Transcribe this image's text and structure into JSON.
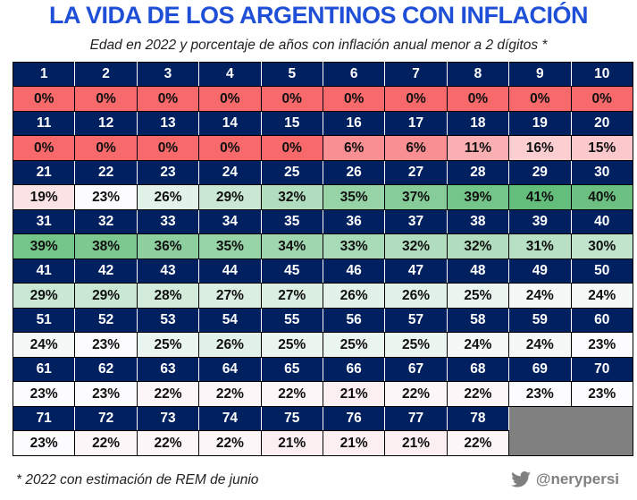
{
  "title": "LA VIDA DE LOS ARGENTINOS CON INFLACIÓN",
  "subtitle": "Edad en 2022 y porcentaje de años con inflación anual menor a 2 dígitos *",
  "footnote": "* 2022 con estimación de REM de junio",
  "credit": {
    "icon": "twitter-bird-icon",
    "handle": "@nerypersi"
  },
  "colors": {
    "header_bg": "#012060",
    "low": "#f8696b",
    "mid": "#fcfcff",
    "high": "#63be7b",
    "empty": "#808080"
  },
  "chart_data": {
    "type": "heatmap",
    "title": "LA VIDA DE LOS ARGENTINOS CON INFLACIÓN",
    "subtitle": "Edad en 2022 y porcentaje de años con inflación anual menor a 2 dígitos *",
    "xlabel": "Edad en 2022",
    "ylabel": "% de años con inflación anual menor a 2 dígitos",
    "columns_per_row": 10,
    "ages": [
      1,
      2,
      3,
      4,
      5,
      6,
      7,
      8,
      9,
      10,
      11,
      12,
      13,
      14,
      15,
      16,
      17,
      18,
      19,
      20,
      21,
      22,
      23,
      24,
      25,
      26,
      27,
      28,
      29,
      30,
      31,
      32,
      33,
      34,
      35,
      36,
      37,
      38,
      39,
      40,
      41,
      42,
      43,
      44,
      45,
      46,
      47,
      48,
      49,
      50,
      51,
      52,
      53,
      54,
      55,
      56,
      57,
      58,
      59,
      60,
      61,
      62,
      63,
      64,
      65,
      66,
      67,
      68,
      69,
      70,
      71,
      72,
      73,
      74,
      75,
      76,
      77,
      78
    ],
    "values": [
      0,
      0,
      0,
      0,
      0,
      0,
      0,
      0,
      0,
      0,
      0,
      0,
      0,
      0,
      0,
      6,
      6,
      11,
      16,
      15,
      19,
      23,
      26,
      29,
      32,
      35,
      37,
      39,
      41,
      40,
      39,
      38,
      36,
      35,
      34,
      33,
      32,
      32,
      31,
      30,
      29,
      29,
      28,
      27,
      27,
      26,
      26,
      25,
      24,
      24,
      24,
      23,
      25,
      26,
      25,
      25,
      25,
      24,
      24,
      23,
      23,
      23,
      22,
      22,
      22,
      21,
      22,
      22,
      23,
      23,
      23,
      22,
      22,
      22,
      21,
      21,
      21,
      22
    ],
    "unit": "%",
    "color_scale": {
      "min": 0,
      "mid": 23,
      "max": 41
    }
  }
}
